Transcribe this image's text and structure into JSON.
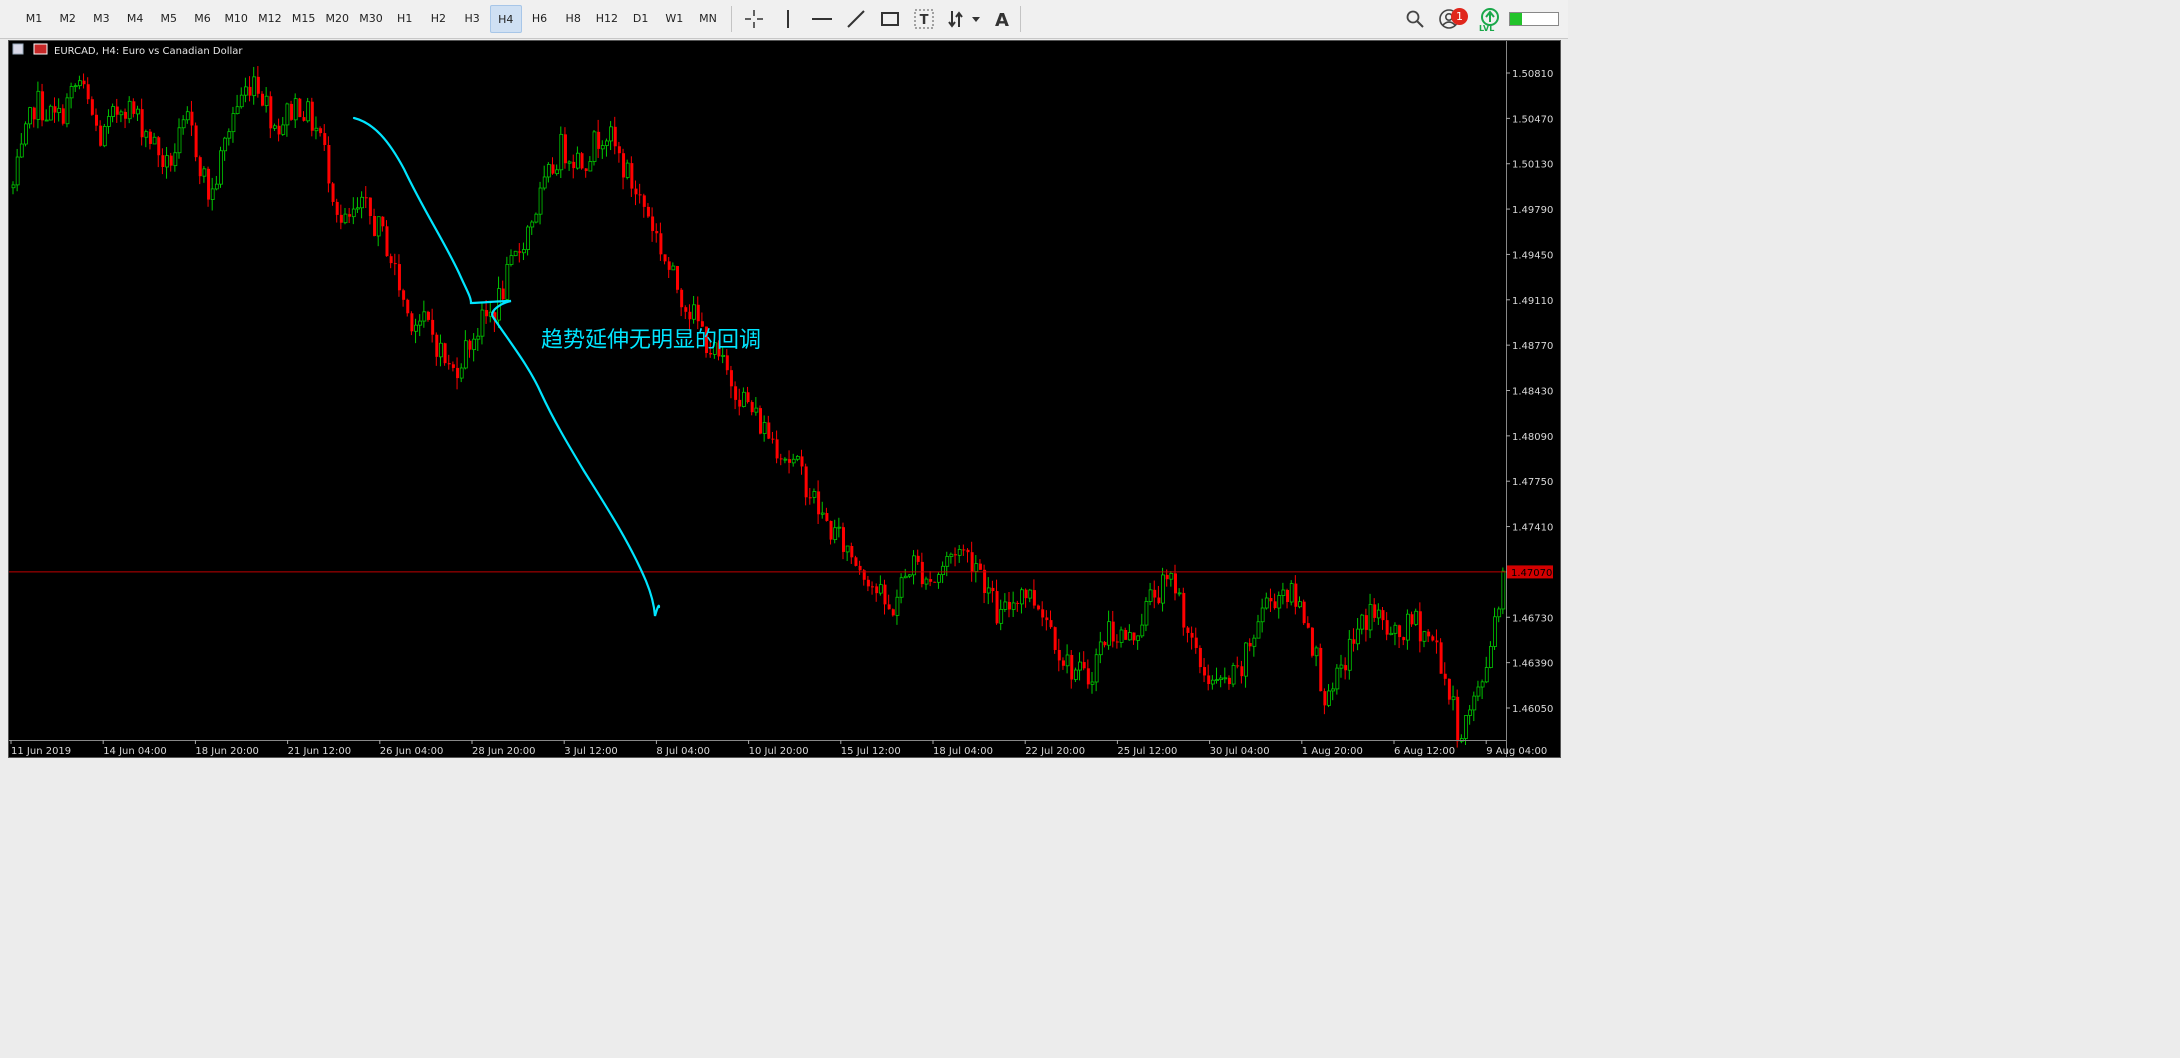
{
  "toolbar": {
    "timeframes": [
      "M1",
      "M2",
      "M3",
      "M4",
      "M5",
      "M6",
      "M10",
      "M12",
      "M15",
      "M20",
      "M30",
      "H1",
      "H2",
      "H3",
      "H4",
      "H6",
      "H8",
      "H12",
      "D1",
      "W1",
      "MN"
    ],
    "active_timeframe": "H4",
    "tools": [
      "crosshair-icon",
      "vertical-line-icon",
      "horizontal-line-icon",
      "trendline-icon",
      "rectangle-icon",
      "text-label-icon",
      "arrows-icon",
      "text-icon"
    ],
    "notification_count": "1",
    "lvl_label": "LVL"
  },
  "chart": {
    "title": "EURCAD, H4:  Euro vs Canadian Dollar",
    "annotation": "趋势延伸无明显的回调",
    "current_price": "1.47070",
    "colors": {
      "bull": "#00c800",
      "bear": "#ff0000",
      "annotation": "#00e5ff",
      "price_line": "#c00000",
      "background": "#000000"
    }
  },
  "chart_data": {
    "type": "candlestick",
    "symbol": "EURCAD",
    "timeframe": "H4",
    "y_ticks": [
      "1.50810",
      "1.50470",
      "1.50130",
      "1.49790",
      "1.49450",
      "1.49110",
      "1.48770",
      "1.48430",
      "1.48090",
      "1.47750",
      "1.47410",
      "1.47070",
      "1.46730",
      "1.46390",
      "1.46050"
    ],
    "ylim": [
      1.4581,
      1.5105
    ],
    "x_ticks": [
      "11 Jun 2019",
      "14 Jun 04:00",
      "18 Jun 20:00",
      "21 Jun 12:00",
      "26 Jun 04:00",
      "28 Jun 20:00",
      "3 Jul 12:00",
      "8 Jul 04:00",
      "10 Jul 20:00",
      "15 Jul 12:00",
      "18 Jul 04:00",
      "22 Jul 20:00",
      "25 Jul 12:00",
      "30 Jul 04:00",
      "1 Aug 20:00",
      "6 Aug 12:00",
      "9 Aug 04:00"
    ],
    "close_path": [
      1.4995,
      1.506,
      1.5045,
      1.5075,
      1.503,
      1.506,
      1.504,
      1.501,
      1.5045,
      1.4985,
      1.505,
      1.508,
      1.504,
      1.506,
      1.5035,
      1.4965,
      1.498,
      1.4955,
      1.49,
      1.489,
      1.4855,
      1.4885,
      1.4905,
      1.4945,
      1.4985,
      1.5025,
      1.5015,
      1.504,
      1.5005,
      1.4975,
      1.493,
      1.49,
      1.487,
      1.4845,
      1.482,
      1.48,
      1.478,
      1.4745,
      1.4725,
      1.4705,
      1.4675,
      1.4715,
      1.47,
      1.4725,
      1.4715,
      1.467,
      1.4695,
      1.468,
      1.464,
      1.4625,
      1.4665,
      1.4655,
      1.469,
      1.47,
      1.464,
      1.462,
      1.463,
      1.468,
      1.4695,
      1.4675,
      1.4605,
      1.465,
      1.468,
      1.4655,
      1.467,
      1.465,
      1.4585,
      1.462,
      1.4705
    ]
  }
}
